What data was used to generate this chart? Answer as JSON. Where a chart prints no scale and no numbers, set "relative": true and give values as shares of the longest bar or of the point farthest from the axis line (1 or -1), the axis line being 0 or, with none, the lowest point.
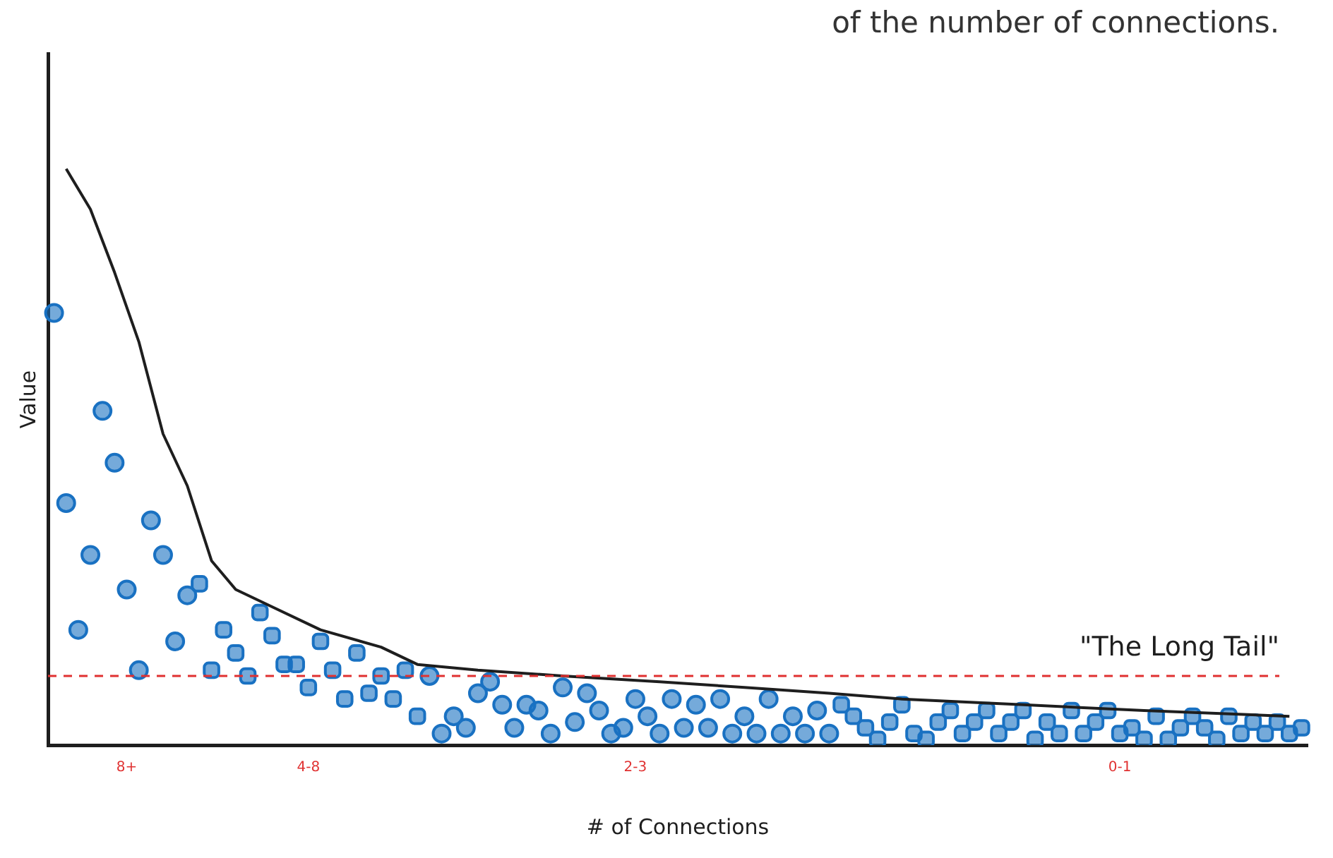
{
  "chart_data": {
    "type": "scatter",
    "relative": true,
    "xlabel": "# of Connections",
    "ylabel": "Value",
    "annotations": [
      "of the number of connections."
    ],
    "categories": [
      null,
      null,
      null,
      null,
      null,
      null,
      "8+",
      null,
      null,
      null,
      null,
      null,
      null,
      null,
      null,
      null,
      null,
      null,
      null,
      null,
      null,
      "4-8",
      null,
      null,
      null,
      null,
      null,
      null,
      null,
      null,
      null,
      null,
      null,
      null,
      null,
      null,
      null,
      null,
      null,
      null,
      null,
      null,
      null,
      null,
      null,
      null,
      null,
      null,
      "2-3",
      null,
      null,
      null,
      null,
      null,
      null,
      null,
      null,
      null,
      null,
      null,
      null,
      null,
      null,
      null,
      null,
      null,
      null,
      null,
      null,
      null,
      null,
      null,
      null,
      null,
      null,
      null,
      null,
      null,
      null,
      null,
      null,
      null,
      null,
      null,
      null,
      null,
      null,
      null,
      "0-1",
      null,
      null,
      null,
      null,
      null,
      null,
      null,
      null,
      null,
      null,
      null,
      null,
      null,
      null,
      null
    ],
    "ref_lines": [
      {
        "axis": "y",
        "value": 0.12,
        "label": "\"The Long Tail\"",
        "color": "#e03131",
        "line_style": "dashed"
      }
    ],
    "series": [
      {
        "type": "line",
        "color": "#1e1e1e",
        "marker": "none",
        "line_style": "solid",
        "values": [
          null,
          1.0,
          null,
          0.93,
          null,
          0.82,
          null,
          0.7,
          null,
          0.54,
          null,
          0.45,
          null,
          0.32,
          null,
          0.27,
          null,
          null,
          0.24,
          null,
          null,
          null,
          0.2,
          null,
          null,
          null,
          null,
          0.17,
          null,
          null,
          0.14,
          null,
          null,
          null,
          null,
          0.13,
          null,
          null,
          null,
          null,
          null,
          null,
          0.12,
          null,
          null,
          null,
          null,
          null,
          null,
          null,
          0.11,
          null,
          null,
          null,
          null,
          null,
          null,
          0.1,
          null,
          null,
          null,
          null,
          null,
          null,
          0.09,
          null,
          null,
          null,
          null,
          null,
          0.08,
          null,
          null,
          null,
          null,
          null,
          null,
          null,
          null,
          null,
          0.07,
          null,
          null,
          null,
          null,
          null,
          null,
          null,
          null,
          null,
          0.06,
          null,
          null,
          null,
          null,
          null,
          null,
          null,
          null,
          null,
          null,
          null,
          0.05,
          null
        ]
      },
      {
        "color": "#1971c2",
        "marker": "circle",
        "values": [
          0.75,
          0.42,
          0.2,
          0.33,
          0.58,
          0.49,
          0.27,
          0.13,
          0.39,
          0.33,
          0.18,
          0.26,
          null,
          null,
          null,
          null,
          null,
          null,
          null,
          null,
          null,
          null,
          null,
          null,
          null,
          null,
          null,
          null,
          null,
          null,
          null,
          null,
          null,
          null,
          null,
          null,
          null,
          null,
          null,
          null,
          null,
          null,
          null,
          null,
          null,
          null,
          null,
          null,
          null,
          null,
          null,
          null,
          null,
          null,
          null,
          null,
          null,
          null,
          null,
          null,
          null,
          null,
          null,
          null,
          null,
          null,
          null,
          null,
          null,
          null,
          null,
          null,
          null,
          null,
          null,
          null,
          null,
          null,
          null,
          null,
          null,
          null,
          null,
          null,
          null,
          null,
          null,
          null,
          null,
          null,
          null,
          null,
          null,
          null,
          null,
          null,
          null,
          null,
          null,
          null,
          null,
          null,
          null,
          null
        ]
      },
      {
        "color": "#1971c2",
        "marker": "square",
        "values": [
          null,
          null,
          null,
          null,
          null,
          null,
          null,
          null,
          null,
          null,
          null,
          null,
          0.28,
          0.13,
          0.2,
          0.16,
          0.12,
          0.23,
          0.19,
          0.14,
          0.14,
          0.1,
          0.18,
          0.13,
          0.08,
          0.16,
          0.09,
          0.12,
          0.08,
          0.13,
          0.05,
          null,
          null,
          null,
          null,
          null,
          null,
          null,
          null,
          null,
          null,
          null,
          null,
          null,
          null,
          null,
          null,
          null,
          null,
          null,
          null,
          null,
          null,
          null,
          null,
          null,
          null,
          null,
          null,
          null,
          null,
          null,
          null,
          null,
          null,
          null,
          null,
          null,
          null,
          null,
          null,
          null,
          null,
          null,
          null,
          null,
          null,
          null,
          null,
          null,
          null,
          null,
          null,
          null,
          null,
          null,
          null,
          null,
          null,
          null,
          null,
          null,
          null,
          null,
          null,
          null,
          null,
          null,
          null,
          null,
          null,
          null,
          null,
          null
        ]
      },
      {
        "color": "#1971c2",
        "marker": "circle",
        "values": [
          null,
          null,
          null,
          null,
          null,
          null,
          null,
          null,
          null,
          null,
          null,
          null,
          null,
          null,
          null,
          null,
          null,
          null,
          null,
          null,
          null,
          null,
          null,
          null,
          null,
          null,
          null,
          null,
          null,
          null,
          null,
          0.12,
          0.02,
          0.05,
          0.03,
          0.09,
          0.11,
          0.07,
          0.03,
          0.07,
          0.06,
          0.02,
          0.1,
          0.04,
          0.09,
          0.06,
          0.02,
          0.03,
          0.08,
          0.05,
          0.02,
          0.08,
          0.03,
          0.07,
          0.03,
          0.08,
          0.02,
          0.05,
          0.02,
          0.08,
          0.02,
          0.05,
          0.02,
          0.06,
          0.02,
          null,
          null,
          null,
          null,
          null,
          null,
          null,
          null,
          null,
          null,
          null,
          null,
          null,
          null,
          null,
          null,
          null,
          null,
          null,
          null,
          null,
          null,
          null,
          null,
          null,
          null,
          null,
          null,
          null,
          null,
          null,
          null,
          null,
          null,
          null,
          null,
          null,
          null,
          null
        ]
      },
      {
        "color": "#1971c2",
        "marker": "square",
        "values": [
          null,
          null,
          null,
          null,
          null,
          null,
          null,
          null,
          null,
          null,
          null,
          null,
          null,
          null,
          null,
          null,
          null,
          null,
          null,
          null,
          null,
          null,
          null,
          null,
          null,
          null,
          null,
          null,
          null,
          null,
          null,
          null,
          null,
          null,
          null,
          null,
          null,
          null,
          null,
          null,
          null,
          null,
          null,
          null,
          null,
          null,
          null,
          null,
          null,
          null,
          null,
          null,
          null,
          null,
          null,
          null,
          null,
          null,
          null,
          null,
          null,
          null,
          null,
          null,
          null,
          0.07,
          0.05,
          0.03,
          0.01,
          0.04,
          0.07,
          0.02,
          0.01,
          0.04,
          0.06,
          0.02,
          0.04,
          0.06,
          0.02,
          0.04,
          0.06,
          0.01,
          0.04,
          0.02,
          0.06,
          0.02,
          0.04,
          0.06,
          0.02,
          0.03,
          0.01,
          0.05,
          0.01,
          0.03,
          0.05,
          0.03,
          0.01,
          0.05,
          0.02,
          0.04,
          0.02,
          0.04,
          0.02,
          0.03
        ]
      }
    ]
  }
}
